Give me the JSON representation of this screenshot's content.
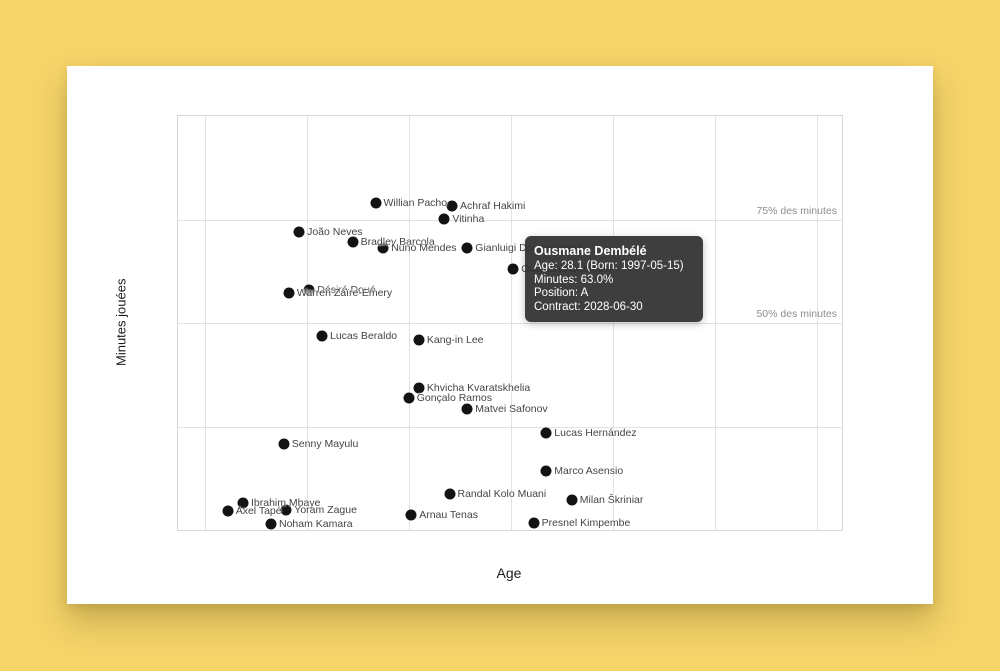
{
  "chart_data": {
    "type": "scatter",
    "title": "",
    "xlabel": "Age",
    "ylabel": "Minutes jouées",
    "grid": true,
    "legend": "none",
    "x_axis": {
      "min": 14.95,
      "max": 41.0,
      "gridline_ages": [
        16,
        20,
        24,
        28,
        32,
        36,
        40
      ],
      "tick_labels_visible": false
    },
    "y_axis": {
      "min": 0,
      "max": 100,
      "unit": "% des minutes",
      "tick_labels_visible": false
    },
    "reference_lines": [
      {
        "pct": 75,
        "label": "75% des minutes"
      },
      {
        "pct": 50,
        "label": "50% des minutes"
      },
      {
        "pct": 25,
        "label": ""
      }
    ],
    "players": [
      {
        "name": "Willian Pacho",
        "age": 22.7,
        "minutes_pct": 79.0
      },
      {
        "name": "Achraf Hakimi",
        "age": 25.7,
        "minutes_pct": 78.3
      },
      {
        "name": "Vitinha",
        "age": 25.4,
        "minutes_pct": 75.1
      },
      {
        "name": "João Neves",
        "age": 19.7,
        "minutes_pct": 72.0
      },
      {
        "name": "Bradley Barcola",
        "age": 21.8,
        "minutes_pct": 69.6
      },
      {
        "name": "Nuno Mendes",
        "age": 23.0,
        "minutes_pct": 68.1
      },
      {
        "name": "Gianluigi Donnarumma",
        "age": 26.3,
        "minutes_pct": 68.1
      },
      {
        "name": "Ousmane Dembélé",
        "age": 28.1,
        "minutes_pct": 63.0
      },
      {
        "name": "Désiré Doué",
        "age": 20.1,
        "minutes_pct": 58.0
      },
      {
        "name": "Warren Zaïre-Emery",
        "age": 19.3,
        "minutes_pct": 57.2
      },
      {
        "name": "Lucas Beraldo",
        "age": 20.6,
        "minutes_pct": 46.9
      },
      {
        "name": "Kang-in Lee",
        "age": 24.4,
        "minutes_pct": 45.9
      },
      {
        "name": "Khvicha Kvaratskhelia",
        "age": 24.4,
        "minutes_pct": 34.3
      },
      {
        "name": "Gonçalo Ramos",
        "age": 24.0,
        "minutes_pct": 31.9
      },
      {
        "name": "Matvei Safonov",
        "age": 26.3,
        "minutes_pct": 29.2
      },
      {
        "name": "Lucas Hernández",
        "age": 29.4,
        "minutes_pct": 23.4
      },
      {
        "name": "Senny Mayulu",
        "age": 19.1,
        "minutes_pct": 20.8
      },
      {
        "name": "Marco Asensio",
        "age": 29.4,
        "minutes_pct": 14.3
      },
      {
        "name": "Randal Kolo Muani",
        "age": 25.6,
        "minutes_pct": 8.7
      },
      {
        "name": "Milan Škriniar",
        "age": 30.4,
        "minutes_pct": 7.2
      },
      {
        "name": "Ibrahim Mbaye",
        "age": 17.5,
        "minutes_pct": 6.5
      },
      {
        "name": "Yoram Zague",
        "age": 19.2,
        "minutes_pct": 4.8
      },
      {
        "name": "Axel Tapé",
        "age": 16.9,
        "minutes_pct": 4.6
      },
      {
        "name": "Arnau Tenas",
        "age": 24.1,
        "minutes_pct": 3.6
      },
      {
        "name": "Presnel Kimpembe",
        "age": 28.9,
        "minutes_pct": 1.7
      },
      {
        "name": "Noham Kamara",
        "age": 18.6,
        "minutes_pct": 1.4
      }
    ]
  },
  "tooltip": {
    "player": "Ousmane Dembélé",
    "title": "Ousmane Dembélé",
    "lines": [
      "Age: 28.1 (Born: 1997-05-15)",
      "Minutes: 63.0%",
      "Position: A",
      "Contract: 2028-06-30"
    ]
  },
  "colors": {
    "background": "#f5d469",
    "card": "#ffffff",
    "dot": "#131313",
    "grid": "#e2e2e2",
    "point_label": "#454545",
    "reference_label": "#8e8e8e",
    "tooltip_bg": "#2f2f2f",
    "tooltip_text": "#ffffff"
  }
}
